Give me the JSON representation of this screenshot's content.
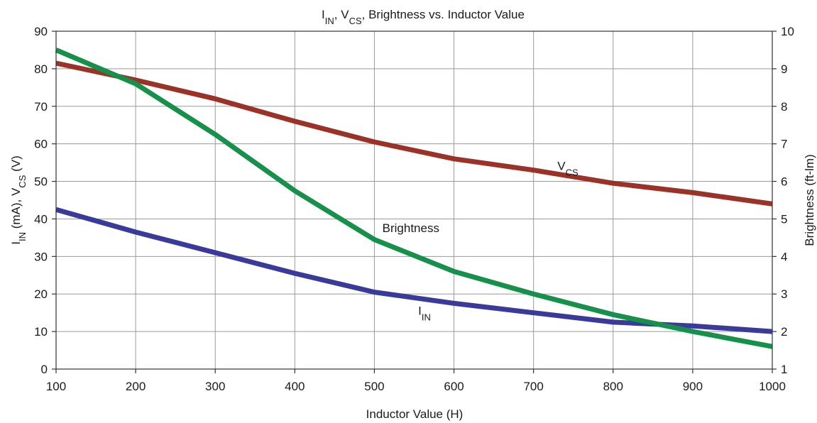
{
  "chart_data": {
    "type": "line",
    "title": {
      "segments": [
        {
          "text": "I",
          "sub": false
        },
        {
          "text": "IN",
          "sub": true
        },
        {
          "text": ", V",
          "sub": false
        },
        {
          "text": "CS",
          "sub": true
        },
        {
          "text": ", Brightness vs. Inductor Value",
          "sub": false
        }
      ]
    },
    "xlabel": "Inductor Value (H)",
    "ylabel": {
      "segments": [
        {
          "text": "I",
          "sub": false
        },
        {
          "text": "IN",
          "sub": true
        },
        {
          "text": " (mA), V",
          "sub": false
        },
        {
          "text": "CS",
          "sub": true
        },
        {
          "text": " (V)",
          "sub": false
        }
      ]
    },
    "y2label": "Brightness (ft-lm)",
    "x": [
      100,
      200,
      300,
      400,
      500,
      600,
      700,
      800,
      900,
      1000
    ],
    "xlim": [
      100,
      1000
    ],
    "ylim": [
      0,
      90
    ],
    "y2lim": [
      1,
      10
    ],
    "xticks": [
      100,
      200,
      300,
      400,
      500,
      600,
      700,
      800,
      900,
      1000
    ],
    "yticks": [
      0,
      10,
      20,
      30,
      40,
      50,
      60,
      70,
      80,
      90
    ],
    "y2ticks": [
      1,
      2,
      3,
      4,
      5,
      6,
      7,
      8,
      9,
      10
    ],
    "grid": true,
    "series": [
      {
        "key": "iin",
        "axis": "left",
        "color": "#3a3a9a",
        "values": [
          42.5,
          36.5,
          31.0,
          25.5,
          20.5,
          17.5,
          15.0,
          12.5,
          11.5,
          10.0
        ],
        "label": {
          "main": "I",
          "sub": "IN",
          "at_x": 555,
          "at_y": 14.5
        }
      },
      {
        "key": "vcs",
        "axis": "left",
        "color": "#9b3228",
        "values": [
          81.5,
          77.0,
          72.0,
          66.0,
          60.5,
          56.0,
          53.0,
          49.5,
          47.0,
          44.0
        ],
        "label": {
          "main": "V",
          "sub": "CS",
          "at_x": 730,
          "at_y": 53.0
        }
      },
      {
        "key": "brightness",
        "axis": "right",
        "color": "#16904a",
        "values": [
          9.5,
          8.6,
          7.25,
          5.75,
          4.45,
          3.6,
          3.0,
          2.45,
          2.0,
          1.6
        ],
        "label": {
          "main": "Brightness",
          "sub": "",
          "at_x": 510,
          "at_y": 36.5
        }
      }
    ]
  }
}
